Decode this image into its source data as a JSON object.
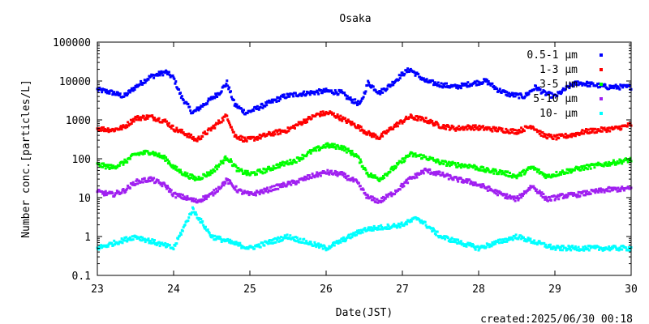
{
  "chart_data": {
    "type": "scatter",
    "title": "Osaka",
    "xlabel": "Date(JST)",
    "ylabel": "Number conc.[particles/L]",
    "xlim": [
      23,
      30
    ],
    "ylim": [
      0.1,
      100000
    ],
    "yscale": "log",
    "grid": false,
    "legend_position": "top-right",
    "x_ticks": [
      "23",
      "24",
      "25",
      "26",
      "27",
      "28",
      "29",
      "30"
    ],
    "y_ticks": [
      "0.1",
      "1",
      "10",
      "100",
      "1000",
      "10000",
      "100000"
    ],
    "series": [
      {
        "name": "0.5-1 μm",
        "color": "#0000ff",
        "x": [
          23.0,
          23.2,
          23.35,
          23.5,
          23.7,
          23.9,
          24.0,
          24.1,
          24.25,
          24.4,
          24.6,
          24.7,
          24.8,
          24.95,
          25.1,
          25.3,
          25.45,
          25.6,
          25.8,
          26.0,
          26.2,
          26.3,
          26.45,
          26.55,
          26.7,
          26.85,
          27.0,
          27.1,
          27.3,
          27.5,
          27.7,
          27.9,
          28.1,
          28.25,
          28.4,
          28.6,
          28.75,
          28.85,
          29.0,
          29.2,
          29.3,
          29.5,
          29.7,
          30.0
        ],
        "y": [
          6000,
          5000,
          4000,
          7000,
          13000,
          17000,
          12000,
          4000,
          1500,
          2500,
          5000,
          9000,
          2500,
          1500,
          2000,
          3000,
          4000,
          4500,
          5000,
          5500,
          5000,
          3500,
          2500,
          9000,
          5000,
          8000,
          15000,
          20000,
          10000,
          8000,
          7000,
          8500,
          10000,
          6000,
          4500,
          4000,
          7000,
          5000,
          4000,
          7500,
          9000,
          8000,
          7000,
          7000
        ]
      },
      {
        "name": "1-3 μm",
        "color": "#ff0000",
        "x": [
          23.0,
          23.2,
          23.35,
          23.5,
          23.7,
          23.9,
          24.0,
          24.15,
          24.3,
          24.5,
          24.7,
          24.8,
          24.95,
          25.1,
          25.3,
          25.5,
          25.7,
          25.9,
          26.05,
          26.2,
          26.4,
          26.55,
          26.7,
          26.9,
          27.1,
          27.3,
          27.5,
          27.7,
          27.9,
          28.1,
          28.3,
          28.5,
          28.7,
          28.85,
          29.0,
          29.2,
          29.4,
          29.6,
          29.8,
          30.0
        ],
        "y": [
          600,
          550,
          650,
          1100,
          1200,
          900,
          600,
          450,
          300,
          600,
          1300,
          400,
          300,
          350,
          450,
          550,
          900,
          1400,
          1500,
          1100,
          700,
          450,
          350,
          700,
          1200,
          1000,
          700,
          600,
          650,
          600,
          550,
          500,
          700,
          400,
          350,
          400,
          500,
          550,
          600,
          750
        ]
      },
      {
        "name": "3-5 μm",
        "color": "#00ff00",
        "x": [
          23.0,
          23.2,
          23.35,
          23.5,
          23.7,
          23.9,
          24.0,
          24.15,
          24.3,
          24.5,
          24.7,
          24.85,
          25.0,
          25.2,
          25.4,
          25.6,
          25.8,
          26.0,
          26.2,
          26.4,
          26.55,
          26.7,
          26.9,
          27.1,
          27.3,
          27.5,
          27.7,
          27.9,
          28.1,
          28.3,
          28.5,
          28.7,
          28.9,
          29.1,
          29.3,
          29.5,
          29.7,
          30.0
        ],
        "y": [
          70,
          60,
          80,
          130,
          150,
          100,
          60,
          40,
          30,
          45,
          110,
          50,
          40,
          50,
          70,
          90,
          150,
          220,
          200,
          120,
          40,
          30,
          60,
          130,
          110,
          80,
          70,
          65,
          50,
          45,
          35,
          60,
          35,
          45,
          55,
          65,
          75,
          95
        ]
      },
      {
        "name": "5-10 μm",
        "color": "#a020f0",
        "x": [
          23.0,
          23.2,
          23.35,
          23.5,
          23.7,
          23.9,
          24.0,
          24.15,
          24.3,
          24.5,
          24.7,
          24.85,
          25.0,
          25.2,
          25.4,
          25.6,
          25.8,
          26.0,
          26.2,
          26.4,
          26.55,
          26.7,
          26.9,
          27.1,
          27.3,
          27.5,
          27.7,
          27.9,
          28.1,
          28.3,
          28.5,
          28.7,
          28.9,
          29.1,
          29.3,
          29.5,
          29.7,
          30.0
        ],
        "y": [
          14,
          12,
          15,
          25,
          30,
          20,
          12,
          10,
          8,
          12,
          28,
          15,
          12,
          15,
          20,
          25,
          35,
          45,
          40,
          25,
          10,
          8,
          14,
          30,
          50,
          40,
          30,
          25,
          18,
          12,
          9,
          20,
          9,
          11,
          12,
          14,
          16,
          17
        ]
      },
      {
        "name": "10- μm",
        "color": "#00ffff",
        "x": [
          23.0,
          23.5,
          24.0,
          24.25,
          24.5,
          25.0,
          25.5,
          26.0,
          26.5,
          27.0,
          27.2,
          27.5,
          28.0,
          28.5,
          29.0,
          29.5,
          30.0
        ],
        "y": [
          0.5,
          1,
          0.5,
          5,
          1,
          0.5,
          1,
          0.5,
          1.5,
          2,
          3,
          1,
          0.5,
          1,
          0.5,
          0.5,
          0.5
        ]
      }
    ]
  },
  "footer": {
    "created": "created:2025/06/30 00:18"
  }
}
